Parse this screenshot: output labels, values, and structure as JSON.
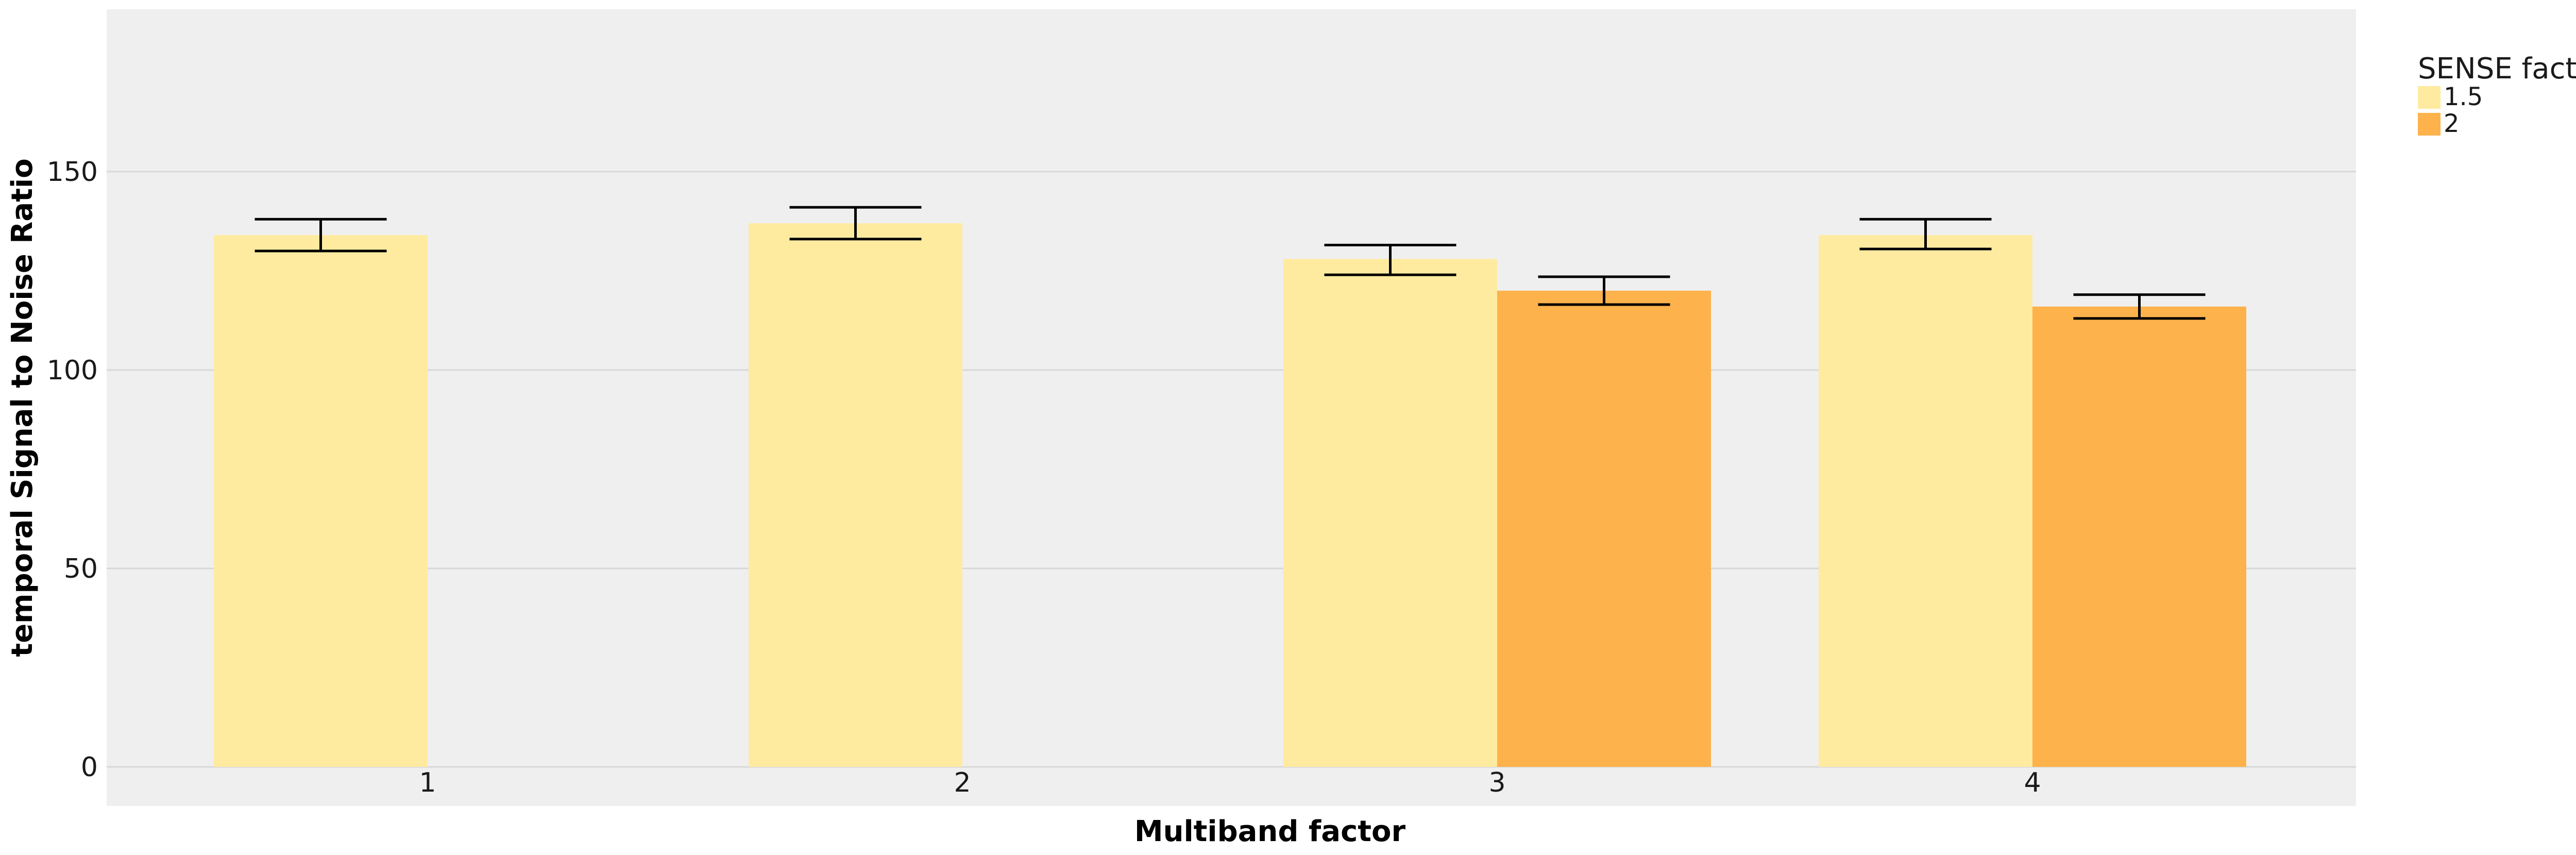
{
  "chart_data": {
    "type": "bar",
    "categories": [
      "1",
      "2",
      "3",
      "4"
    ],
    "series": [
      {
        "name": "1.5",
        "color": "#FEEBA0",
        "values": [
          134,
          137,
          128,
          134
        ],
        "error_low": [
          130,
          133,
          124,
          130.5
        ],
        "error_high": [
          138,
          141,
          131.5,
          138
        ]
      },
      {
        "name": "2",
        "color": "#FDB24C",
        "values": [
          null,
          null,
          120,
          116
        ],
        "error_low": [
          null,
          null,
          116.5,
          113
        ],
        "error_high": [
          null,
          null,
          123.5,
          119
        ]
      }
    ],
    "xlabel": "Multiband factor",
    "ylabel": "temporal Signal to Noise Ratio",
    "ylim": [
      -10,
      190
    ],
    "yticks": [
      0,
      50,
      100,
      150
    ],
    "grid": true,
    "legend": {
      "title": "SENSE factor",
      "placement": "right"
    },
    "colors": {
      "panel_background": "#EFEFEF",
      "gridline": "#D8D8D8",
      "error_bar": "#000000"
    }
  }
}
